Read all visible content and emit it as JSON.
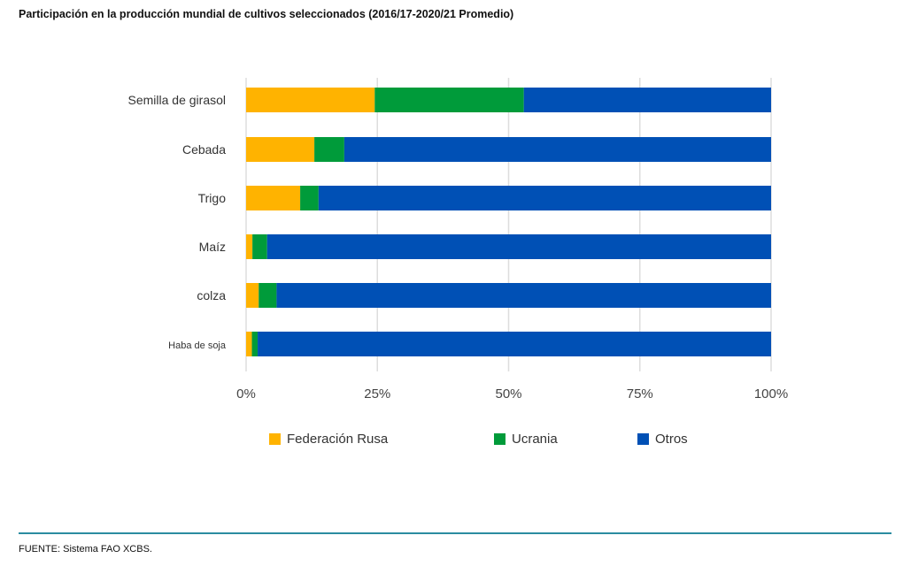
{
  "chart_data": {
    "type": "bar",
    "orientation": "horizontal",
    "stacked": true,
    "title": "Participación en la producción mundial de cultivos seleccionados (2016/17-2020/21 Promedio)",
    "categories": [
      "Semilla de girasol",
      "Cebada",
      "Trigo",
      "Maíz",
      "colza",
      "Haba de soja"
    ],
    "series": [
      {
        "name": "Federación Rusa",
        "color": "#FFB300",
        "values": [
          24.5,
          13.0,
          10.3,
          1.2,
          2.4,
          1.1
        ]
      },
      {
        "name": "Ucrania",
        "color": "#009B3A",
        "values": [
          28.4,
          5.7,
          3.5,
          2.8,
          3.4,
          1.1
        ]
      },
      {
        "name": "Otros",
        "color": "#0050B5",
        "values": [
          47.1,
          81.3,
          86.2,
          96.0,
          94.2,
          97.8
        ]
      }
    ],
    "xticks": [
      "0%",
      "25%",
      "50%",
      "75%",
      "100%"
    ],
    "xlim": [
      0,
      100
    ],
    "grid": true,
    "legend_position": "bottom"
  },
  "source": "FUENTE: Sistema FAO XCBS."
}
